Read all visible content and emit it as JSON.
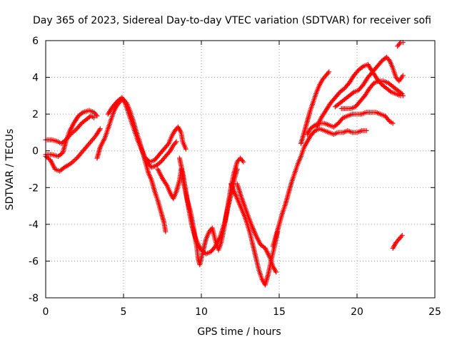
{
  "chart_data": {
    "type": "scatter",
    "title": "Day 365 of 2023, Sidereal Day-to-day VTEC variation (SDTVAR) for receiver sofi",
    "xlabel": "GPS time / hours",
    "ylabel": "SDTVAR / TECUs",
    "xlim": [
      0,
      25
    ],
    "ylim": [
      -8,
      6
    ],
    "xticks": [
      0,
      5,
      10,
      15,
      20,
      25
    ],
    "yticks": [
      -8,
      -6,
      -4,
      -2,
      0,
      2,
      4,
      6
    ],
    "grid": true,
    "marker": "plus",
    "color": "#ff0000",
    "segments": [
      {
        "points": [
          [
            0.0,
            -0.3
          ],
          [
            0.3,
            -0.5
          ],
          [
            0.6,
            -1.0
          ],
          [
            0.9,
            -1.1
          ],
          [
            1.2,
            -0.9
          ],
          [
            1.6,
            -0.7
          ],
          [
            2.0,
            -0.4
          ],
          [
            2.4,
            0.0
          ],
          [
            2.8,
            0.4
          ],
          [
            3.2,
            0.8
          ],
          [
            3.5,
            1.2
          ]
        ]
      },
      {
        "points": [
          [
            0.0,
            0.6
          ],
          [
            0.4,
            0.6
          ],
          [
            0.8,
            0.5
          ],
          [
            1.0,
            0.4
          ],
          [
            1.3,
            0.6
          ],
          [
            1.6,
            0.9
          ],
          [
            2.0,
            1.2
          ],
          [
            2.3,
            1.5
          ],
          [
            2.6,
            1.7
          ],
          [
            2.9,
            1.9
          ],
          [
            3.1,
            1.8
          ]
        ]
      },
      {
        "points": [
          [
            0.0,
            -0.2
          ],
          [
            0.4,
            -0.2
          ],
          [
            0.8,
            -0.3
          ],
          [
            1.1,
            -0.1
          ],
          [
            1.3,
            0.5
          ],
          [
            1.5,
            1.0
          ],
          [
            1.8,
            1.5
          ],
          [
            2.1,
            1.9
          ],
          [
            2.4,
            2.1
          ],
          [
            2.8,
            2.2
          ],
          [
            3.1,
            2.1
          ],
          [
            3.3,
            1.9
          ]
        ]
      },
      {
        "points": [
          [
            3.3,
            -0.4
          ],
          [
            3.5,
            0.2
          ],
          [
            3.8,
            0.7
          ],
          [
            4.0,
            1.2
          ],
          [
            4.2,
            1.7
          ],
          [
            4.4,
            2.2
          ],
          [
            4.6,
            2.5
          ],
          [
            4.8,
            2.7
          ],
          [
            5.0,
            2.8
          ],
          [
            5.2,
            2.6
          ],
          [
            5.4,
            2.2
          ],
          [
            5.6,
            1.7
          ],
          [
            5.8,
            1.1
          ],
          [
            6.0,
            0.6
          ],
          [
            6.2,
            0.0
          ],
          [
            6.4,
            -0.6
          ],
          [
            6.6,
            -1.2
          ],
          [
            6.8,
            -1.6
          ],
          [
            7.0,
            -2.2
          ],
          [
            7.2,
            -2.7
          ],
          [
            7.4,
            -3.3
          ],
          [
            7.6,
            -3.9
          ],
          [
            7.7,
            -4.4
          ]
        ]
      },
      {
        "points": [
          [
            4.0,
            2.0
          ],
          [
            4.3,
            2.4
          ],
          [
            4.6,
            2.7
          ],
          [
            4.9,
            2.9
          ],
          [
            5.1,
            2.6
          ],
          [
            5.3,
            2.1
          ],
          [
            5.5,
            1.6
          ],
          [
            5.7,
            1.1
          ],
          [
            5.9,
            0.6
          ],
          [
            6.1,
            0.2
          ],
          [
            6.3,
            -0.2
          ],
          [
            6.5,
            -0.6
          ],
          [
            6.8,
            -0.9
          ],
          [
            7.1,
            -0.8
          ],
          [
            7.4,
            -0.6
          ],
          [
            7.7,
            -0.3
          ],
          [
            8.0,
            0.0
          ],
          [
            8.2,
            0.3
          ],
          [
            8.4,
            0.5
          ]
        ]
      },
      {
        "points": [
          [
            6.4,
            -0.4
          ],
          [
            6.7,
            -0.6
          ],
          [
            7.0,
            -0.5
          ],
          [
            7.3,
            -0.2
          ],
          [
            7.6,
            0.1
          ],
          [
            7.9,
            0.4
          ],
          [
            8.1,
            0.8
          ],
          [
            8.3,
            1.1
          ],
          [
            8.5,
            1.3
          ],
          [
            8.7,
            1.0
          ],
          [
            8.8,
            0.5
          ],
          [
            9.0,
            0.1
          ]
        ]
      },
      {
        "points": [
          [
            7.2,
            -1.0
          ],
          [
            7.5,
            -1.5
          ],
          [
            7.8,
            -1.9
          ],
          [
            8.0,
            -2.3
          ],
          [
            8.2,
            -2.6
          ],
          [
            8.4,
            -2.2
          ],
          [
            8.6,
            -1.6
          ],
          [
            8.7,
            -1.0
          ],
          [
            8.9,
            -1.9
          ],
          [
            9.1,
            -2.7
          ],
          [
            9.3,
            -3.3
          ],
          [
            9.5,
            -4.2
          ],
          [
            9.7,
            -5.2
          ],
          [
            9.8,
            -5.9
          ],
          [
            9.9,
            -6.2
          ],
          [
            10.1,
            -5.5
          ],
          [
            10.3,
            -4.8
          ],
          [
            10.5,
            -4.4
          ],
          [
            10.7,
            -4.2
          ],
          [
            10.9,
            -4.9
          ],
          [
            11.1,
            -5.4
          ],
          [
            11.3,
            -4.9
          ],
          [
            11.5,
            -4.0
          ],
          [
            11.7,
            -3.0
          ],
          [
            11.9,
            -2.0
          ],
          [
            12.1,
            -1.2
          ],
          [
            12.3,
            -0.6
          ],
          [
            12.5,
            -0.4
          ],
          [
            12.7,
            -0.6
          ]
        ]
      },
      {
        "points": [
          [
            8.6,
            -0.4
          ],
          [
            8.8,
            -1.2
          ],
          [
            9.0,
            -2.2
          ],
          [
            9.2,
            -3.2
          ],
          [
            9.4,
            -4.1
          ],
          [
            9.6,
            -4.7
          ],
          [
            9.8,
            -5.1
          ],
          [
            10.0,
            -5.4
          ],
          [
            10.3,
            -5.6
          ],
          [
            10.6,
            -5.5
          ],
          [
            10.9,
            -5.2
          ],
          [
            11.2,
            -4.7
          ],
          [
            11.5,
            -3.9
          ],
          [
            11.7,
            -3.1
          ],
          [
            11.9,
            -2.4
          ],
          [
            12.1,
            -1.6
          ],
          [
            12.3,
            -1.0
          ]
        ]
      },
      {
        "points": [
          [
            11.9,
            -1.8
          ],
          [
            12.1,
            -2.2
          ],
          [
            12.3,
            -2.6
          ],
          [
            12.5,
            -3.0
          ],
          [
            12.8,
            -3.6
          ],
          [
            13.1,
            -4.4
          ],
          [
            13.3,
            -5.1
          ],
          [
            13.5,
            -5.8
          ],
          [
            13.7,
            -6.5
          ],
          [
            13.9,
            -7.0
          ],
          [
            14.1,
            -7.3
          ],
          [
            14.3,
            -6.7
          ],
          [
            14.5,
            -5.9
          ],
          [
            14.7,
            -5.2
          ],
          [
            14.9,
            -4.4
          ]
        ]
      },
      {
        "points": [
          [
            12.3,
            -1.8
          ],
          [
            12.6,
            -2.6
          ],
          [
            12.9,
            -3.3
          ],
          [
            13.2,
            -4.0
          ],
          [
            13.5,
            -4.6
          ],
          [
            13.8,
            -5.1
          ],
          [
            14.1,
            -5.3
          ],
          [
            14.4,
            -5.8
          ],
          [
            14.6,
            -6.3
          ],
          [
            14.8,
            -6.6
          ]
        ]
      },
      {
        "points": [
          [
            14.6,
            -5.2
          ],
          [
            14.8,
            -4.6
          ],
          [
            15.0,
            -4.0
          ],
          [
            15.2,
            -3.4
          ],
          [
            15.4,
            -2.9
          ],
          [
            15.6,
            -2.3
          ],
          [
            15.8,
            -1.7
          ],
          [
            16.0,
            -1.2
          ],
          [
            16.2,
            -0.7
          ],
          [
            16.4,
            -0.3
          ],
          [
            16.6,
            0.2
          ],
          [
            16.8,
            0.5
          ],
          [
            17.0,
            0.8
          ],
          [
            17.3,
            1.1
          ],
          [
            17.6,
            1.2
          ],
          [
            17.9,
            1.1
          ],
          [
            18.2,
            1.0
          ],
          [
            18.5,
            0.9
          ],
          [
            18.8,
            1.0
          ],
          [
            19.1,
            1.0
          ],
          [
            19.4,
            1.1
          ],
          [
            19.7,
            1.0
          ],
          [
            20.0,
            1.0
          ],
          [
            20.3,
            1.1
          ],
          [
            20.6,
            1.1
          ]
        ]
      },
      {
        "points": [
          [
            16.4,
            0.4
          ],
          [
            16.6,
            1.0
          ],
          [
            16.8,
            1.6
          ],
          [
            17.0,
            2.2
          ],
          [
            17.2,
            2.7
          ],
          [
            17.4,
            3.2
          ],
          [
            17.6,
            3.6
          ],
          [
            17.8,
            3.9
          ],
          [
            18.0,
            4.1
          ],
          [
            18.2,
            4.3
          ]
        ]
      },
      {
        "points": [
          [
            16.8,
            0.9
          ],
          [
            17.0,
            1.2
          ],
          [
            17.3,
            1.4
          ],
          [
            17.6,
            1.5
          ],
          [
            17.9,
            1.5
          ],
          [
            18.2,
            1.4
          ],
          [
            18.5,
            1.3
          ],
          [
            18.8,
            1.5
          ],
          [
            19.1,
            1.8
          ],
          [
            19.4,
            1.9
          ],
          [
            19.7,
            2.0
          ],
          [
            20.0,
            2.0
          ],
          [
            20.3,
            2.0
          ],
          [
            20.6,
            2.1
          ],
          [
            20.9,
            2.1
          ],
          [
            21.2,
            2.1
          ],
          [
            21.5,
            2.0
          ],
          [
            21.8,
            1.9
          ],
          [
            22.1,
            1.6
          ],
          [
            22.3,
            1.5
          ]
        ]
      },
      {
        "points": [
          [
            17.4,
            1.3
          ],
          [
            17.7,
            1.8
          ],
          [
            18.0,
            2.2
          ],
          [
            18.3,
            2.6
          ],
          [
            18.6,
            2.9
          ],
          [
            18.9,
            3.2
          ],
          [
            19.2,
            3.4
          ],
          [
            19.5,
            3.7
          ],
          [
            19.8,
            4.1
          ],
          [
            20.1,
            4.4
          ],
          [
            20.4,
            4.6
          ],
          [
            20.7,
            4.7
          ],
          [
            21.0,
            4.3
          ],
          [
            21.3,
            3.9
          ],
          [
            21.6,
            3.6
          ],
          [
            21.9,
            3.4
          ],
          [
            22.2,
            3.2
          ],
          [
            22.5,
            3.1
          ],
          [
            22.8,
            3.0
          ],
          [
            22.95,
            3.0
          ]
        ]
      },
      {
        "points": [
          [
            18.6,
            2.4
          ],
          [
            18.9,
            2.6
          ],
          [
            19.2,
            2.8
          ],
          [
            19.5,
            3.0
          ],
          [
            19.8,
            3.2
          ],
          [
            20.1,
            3.3
          ],
          [
            20.4,
            3.6
          ],
          [
            20.7,
            4.0
          ],
          [
            21.0,
            4.3
          ],
          [
            21.3,
            4.6
          ],
          [
            21.6,
            4.9
          ],
          [
            21.9,
            5.1
          ],
          [
            22.1,
            4.9
          ],
          [
            22.3,
            4.5
          ],
          [
            22.5,
            4.0
          ],
          [
            22.7,
            3.8
          ],
          [
            22.95,
            4.1
          ]
        ]
      },
      {
        "points": [
          [
            19.0,
            2.3
          ],
          [
            19.3,
            2.3
          ],
          [
            19.6,
            2.3
          ],
          [
            19.9,
            2.4
          ],
          [
            20.2,
            2.7
          ],
          [
            20.5,
            3.0
          ],
          [
            20.8,
            3.4
          ],
          [
            21.1,
            3.7
          ],
          [
            21.4,
            3.8
          ],
          [
            21.7,
            3.8
          ],
          [
            22.0,
            3.7
          ],
          [
            22.3,
            3.5
          ],
          [
            22.6,
            3.3
          ],
          [
            22.9,
            3.1
          ]
        ]
      },
      {
        "points": [
          [
            22.6,
            5.7
          ],
          [
            22.8,
            5.9
          ],
          [
            22.95,
            5.9
          ]
        ]
      },
      {
        "points": [
          [
            22.3,
            -5.3
          ],
          [
            22.5,
            -5.0
          ],
          [
            22.7,
            -4.8
          ],
          [
            22.9,
            -4.6
          ]
        ]
      }
    ]
  }
}
